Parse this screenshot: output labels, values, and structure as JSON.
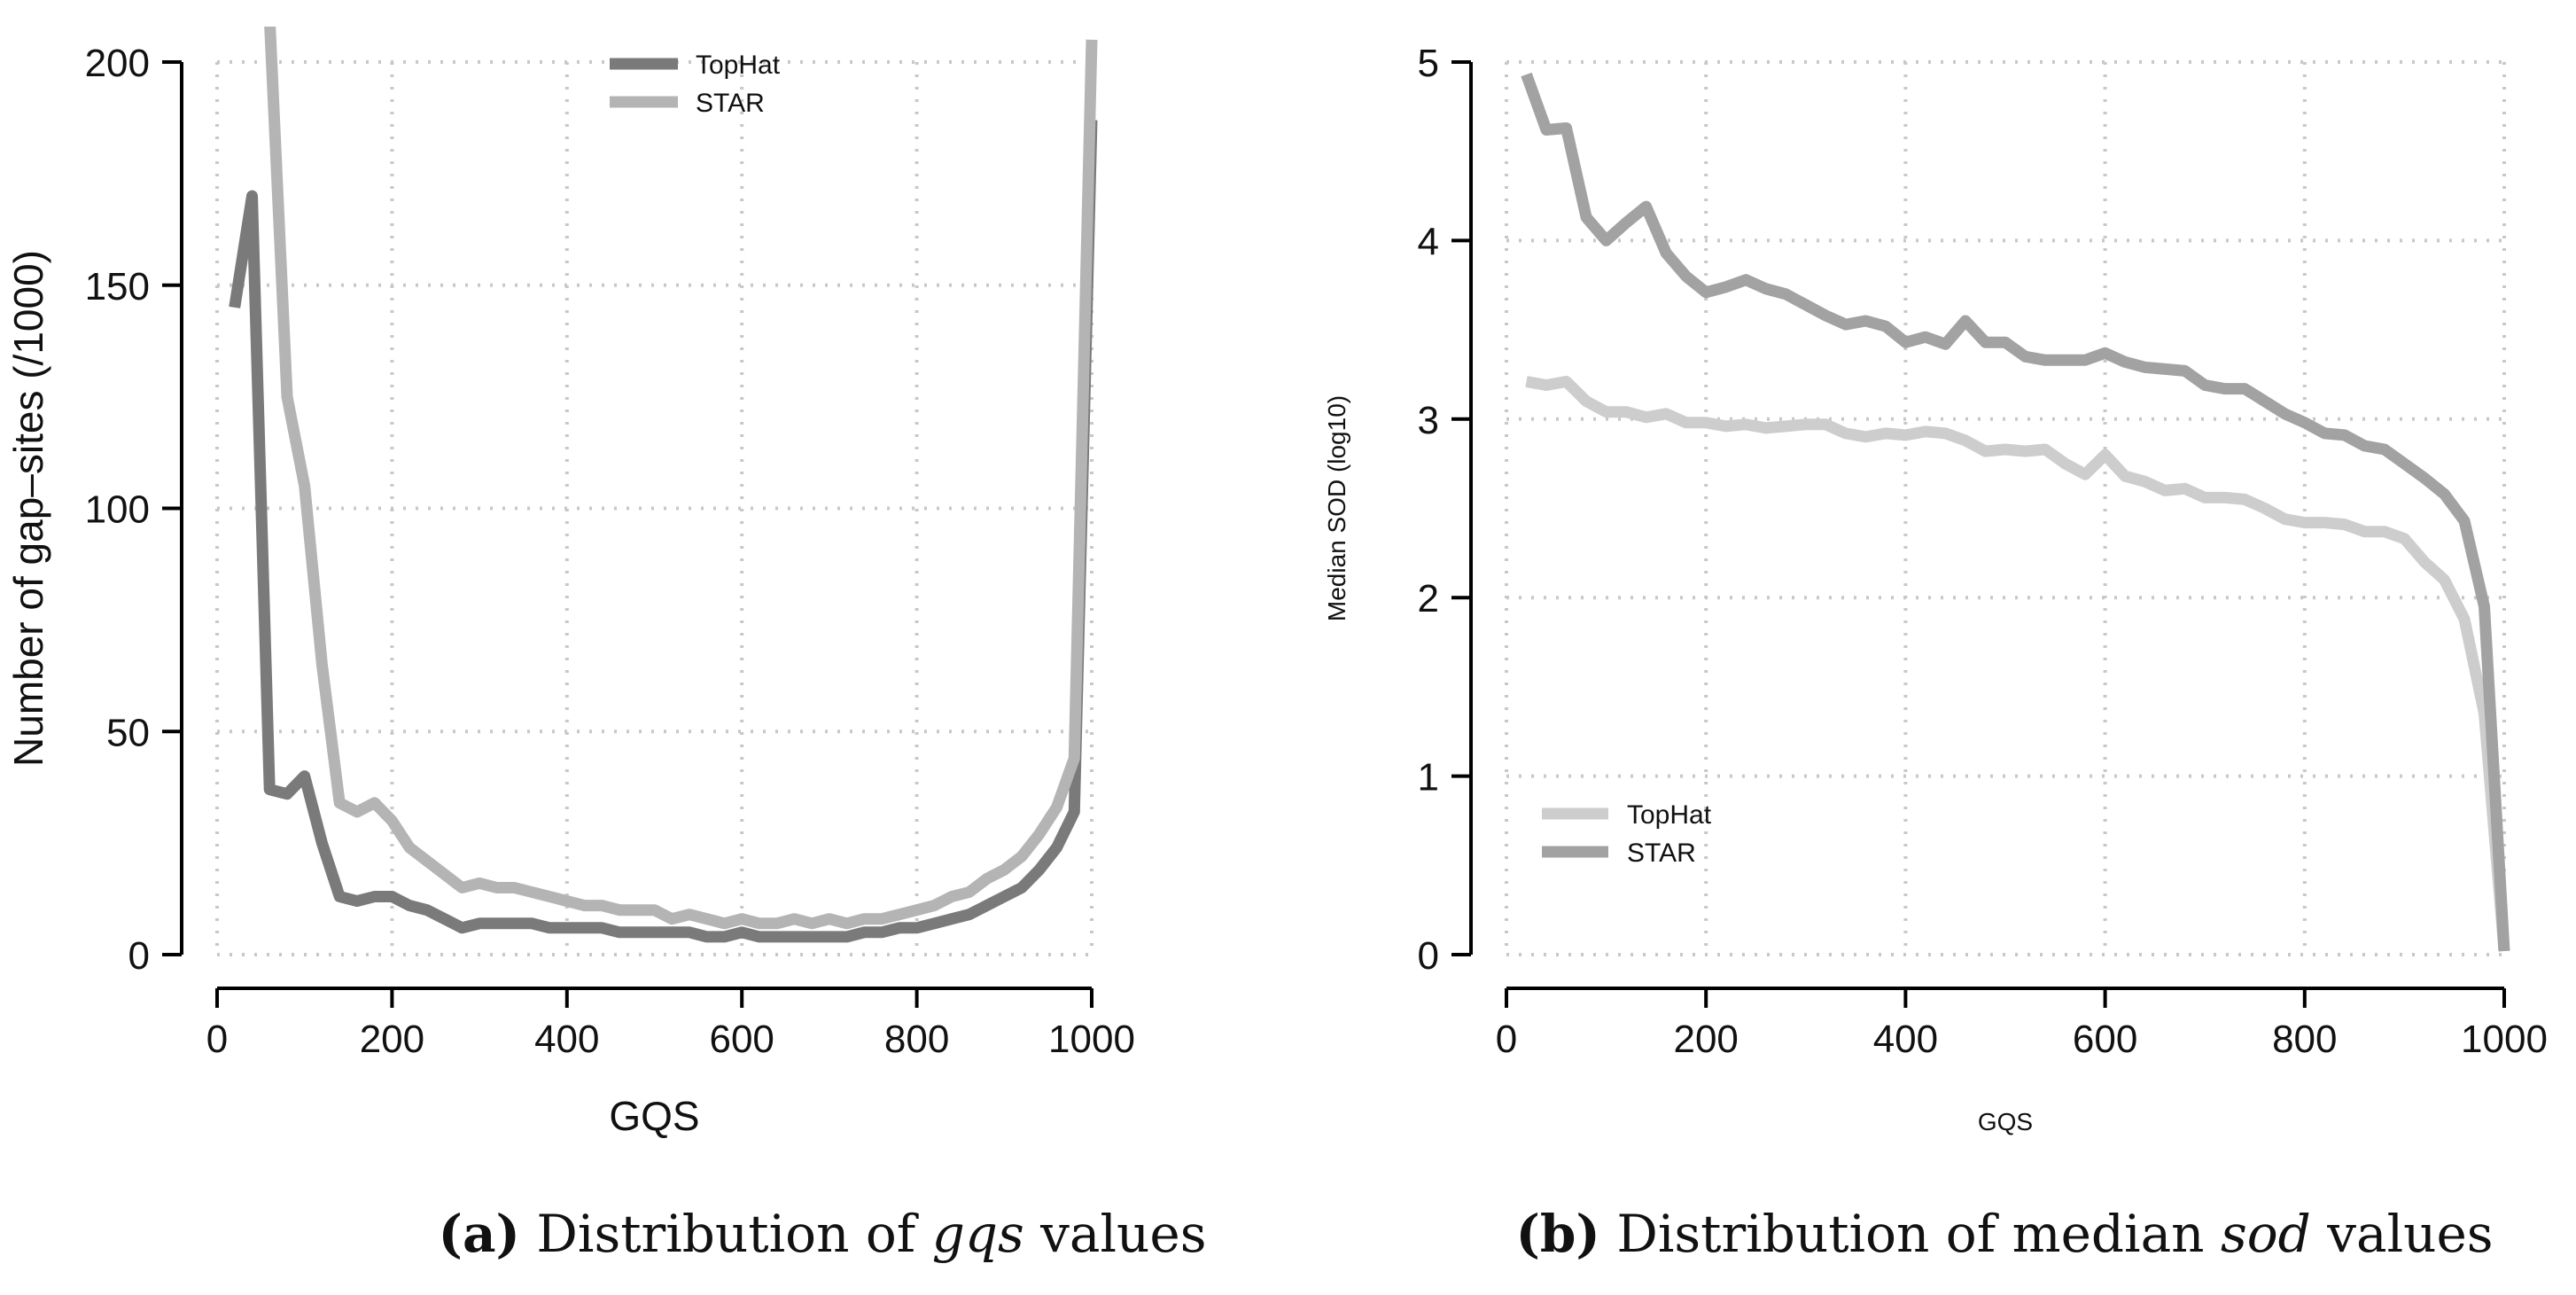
{
  "chart_data": [
    {
      "type": "line",
      "panel": "a",
      "caption_letter": "(a)",
      "caption_pre": "Distribution of ",
      "caption_italic": "gqs",
      "caption_post": " values",
      "xlabel": "GQS",
      "ylabel": "Number of gap–sites (/1000)",
      "xlim": [
        0,
        1000
      ],
      "ylim": [
        0,
        200
      ],
      "xticks": [
        0,
        200,
        400,
        600,
        800,
        1000
      ],
      "yticks": [
        0,
        50,
        100,
        150,
        200
      ],
      "grid": true,
      "legend_position": "top-center",
      "series": [
        {
          "name": "TopHat",
          "color": "#7a7a7a",
          "x": [
            20,
            40,
            60,
            80,
            100,
            120,
            140,
            160,
            180,
            200,
            220,
            240,
            260,
            280,
            300,
            320,
            340,
            360,
            380,
            400,
            420,
            440,
            460,
            480,
            500,
            520,
            540,
            560,
            580,
            600,
            620,
            640,
            660,
            680,
            700,
            720,
            740,
            760,
            780,
            800,
            820,
            840,
            860,
            880,
            900,
            920,
            940,
            960,
            980,
            1000
          ],
          "y": [
            145,
            170,
            37,
            36,
            40,
            25,
            13,
            12,
            13,
            13,
            11,
            10,
            8,
            6,
            7,
            7,
            7,
            7,
            6,
            6,
            6,
            6,
            5,
            5,
            5,
            5,
            5,
            4,
            4,
            5,
            4,
            4,
            4,
            4,
            4,
            4,
            5,
            5,
            6,
            6,
            7,
            8,
            9,
            11,
            13,
            15,
            19,
            24,
            32,
            187
          ]
        },
        {
          "name": "STAR",
          "color": "#b4b4b4",
          "x": [
            60,
            80,
            100,
            120,
            140,
            160,
            180,
            200,
            220,
            240,
            260,
            280,
            300,
            320,
            340,
            360,
            380,
            400,
            420,
            440,
            460,
            480,
            500,
            520,
            540,
            560,
            580,
            600,
            620,
            640,
            660,
            680,
            700,
            720,
            740,
            760,
            780,
            800,
            820,
            840,
            860,
            880,
            900,
            920,
            940,
            960,
            980,
            1000
          ],
          "y": [
            210,
            125,
            105,
            65,
            34,
            32,
            34,
            30,
            24,
            21,
            18,
            15,
            16,
            15,
            15,
            14,
            13,
            12,
            11,
            11,
            10,
            10,
            10,
            8,
            9,
            8,
            7,
            8,
            7,
            7,
            8,
            7,
            8,
            7,
            8,
            8,
            9,
            10,
            11,
            13,
            14,
            17,
            19,
            22,
            27,
            33,
            44,
            205
          ]
        }
      ]
    },
    {
      "type": "line",
      "panel": "b",
      "caption_letter": "(b)",
      "caption_pre": "Distribution of median ",
      "caption_italic": "sod",
      "caption_post": " values",
      "xlabel": "GQS",
      "ylabel": "Median SOD (log10)",
      "xlim": [
        0,
        1000
      ],
      "ylim": [
        0,
        5
      ],
      "xticks": [
        0,
        200,
        400,
        600,
        800,
        1000
      ],
      "yticks": [
        0,
        1,
        2,
        3,
        4,
        5
      ],
      "grid": true,
      "legend_position": "bottom-left",
      "series": [
        {
          "name": "TopHat",
          "color": "#cdcdcd",
          "x": [
            20,
            40,
            60,
            80,
            100,
            120,
            140,
            160,
            180,
            200,
            220,
            240,
            260,
            280,
            300,
            320,
            340,
            360,
            380,
            400,
            420,
            440,
            460,
            480,
            500,
            520,
            540,
            560,
            580,
            600,
            620,
            640,
            660,
            680,
            700,
            720,
            740,
            760,
            780,
            800,
            820,
            840,
            860,
            880,
            900,
            920,
            940,
            960,
            980,
            1000
          ],
          "y": [
            3.21,
            3.19,
            3.21,
            3.1,
            3.04,
            3.04,
            3.01,
            3.03,
            2.98,
            2.98,
            2.96,
            2.97,
            2.95,
            2.96,
            2.97,
            2.97,
            2.92,
            2.9,
            2.92,
            2.91,
            2.93,
            2.92,
            2.88,
            2.82,
            2.83,
            2.82,
            2.83,
            2.75,
            2.69,
            2.8,
            2.68,
            2.65,
            2.6,
            2.61,
            2.56,
            2.56,
            2.55,
            2.5,
            2.44,
            2.42,
            2.42,
            2.41,
            2.37,
            2.37,
            2.33,
            2.2,
            2.1,
            1.88,
            1.35,
            0.02
          ]
        },
        {
          "name": "STAR",
          "color": "#a2a2a2",
          "x": [
            20,
            40,
            60,
            80,
            100,
            120,
            140,
            160,
            180,
            200,
            220,
            240,
            260,
            280,
            300,
            320,
            340,
            360,
            380,
            400,
            420,
            440,
            460,
            480,
            500,
            520,
            540,
            560,
            580,
            600,
            620,
            640,
            660,
            680,
            700,
            720,
            740,
            760,
            780,
            800,
            820,
            840,
            860,
            880,
            900,
            920,
            940,
            960,
            980,
            1000
          ],
          "y": [
            4.93,
            4.62,
            4.63,
            4.13,
            4.0,
            4.1,
            4.19,
            3.93,
            3.8,
            3.71,
            3.74,
            3.78,
            3.73,
            3.7,
            3.64,
            3.58,
            3.53,
            3.55,
            3.52,
            3.43,
            3.46,
            3.42,
            3.55,
            3.43,
            3.43,
            3.35,
            3.33,
            3.33,
            3.33,
            3.37,
            3.32,
            3.29,
            3.28,
            3.27,
            3.19,
            3.17,
            3.17,
            3.1,
            3.03,
            2.98,
            2.92,
            2.91,
            2.85,
            2.83,
            2.75,
            2.67,
            2.58,
            2.43,
            1.95,
            0.02
          ]
        }
      ]
    }
  ]
}
